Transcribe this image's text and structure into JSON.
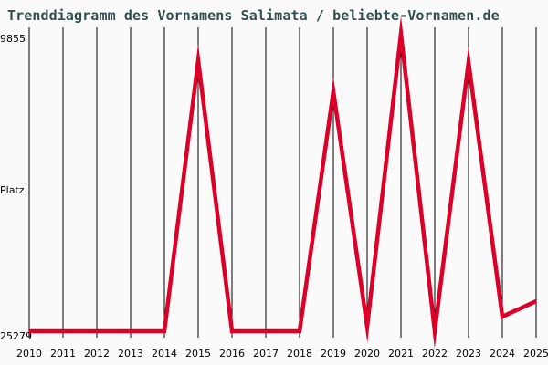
{
  "chart_data": {
    "type": "line",
    "title": "Trenddiagramm des Vornamens Salimata / beliebte-Vornamen.de",
    "ylabel": "Platz",
    "xlabel": "",
    "y_axis_inverted": true,
    "ylim": [
      9855,
      25279
    ],
    "y_tick_labels": [
      "9855",
      "25279"
    ],
    "grid": "vertical",
    "x": [
      2010,
      2011,
      2012,
      2013,
      2014,
      2015,
      2016,
      2017,
      2018,
      2019,
      2020,
      2021,
      2022,
      2023,
      2024,
      2025
    ],
    "x_tick_labels": [
      "2010",
      "2011",
      "2012",
      "2013",
      "2014",
      "2015",
      "2016",
      "2017",
      "2018",
      "2019",
      "2020",
      "2021",
      "2022",
      "2023",
      "2024",
      "2025"
    ],
    "series": [
      {
        "name": "Salimata",
        "color": "#dc0028",
        "values": [
          25279,
          25279,
          25279,
          25279,
          25279,
          11230,
          25279,
          25279,
          25279,
          12840,
          25040,
          9855,
          25279,
          11320,
          24520,
          23720
        ]
      }
    ]
  }
}
